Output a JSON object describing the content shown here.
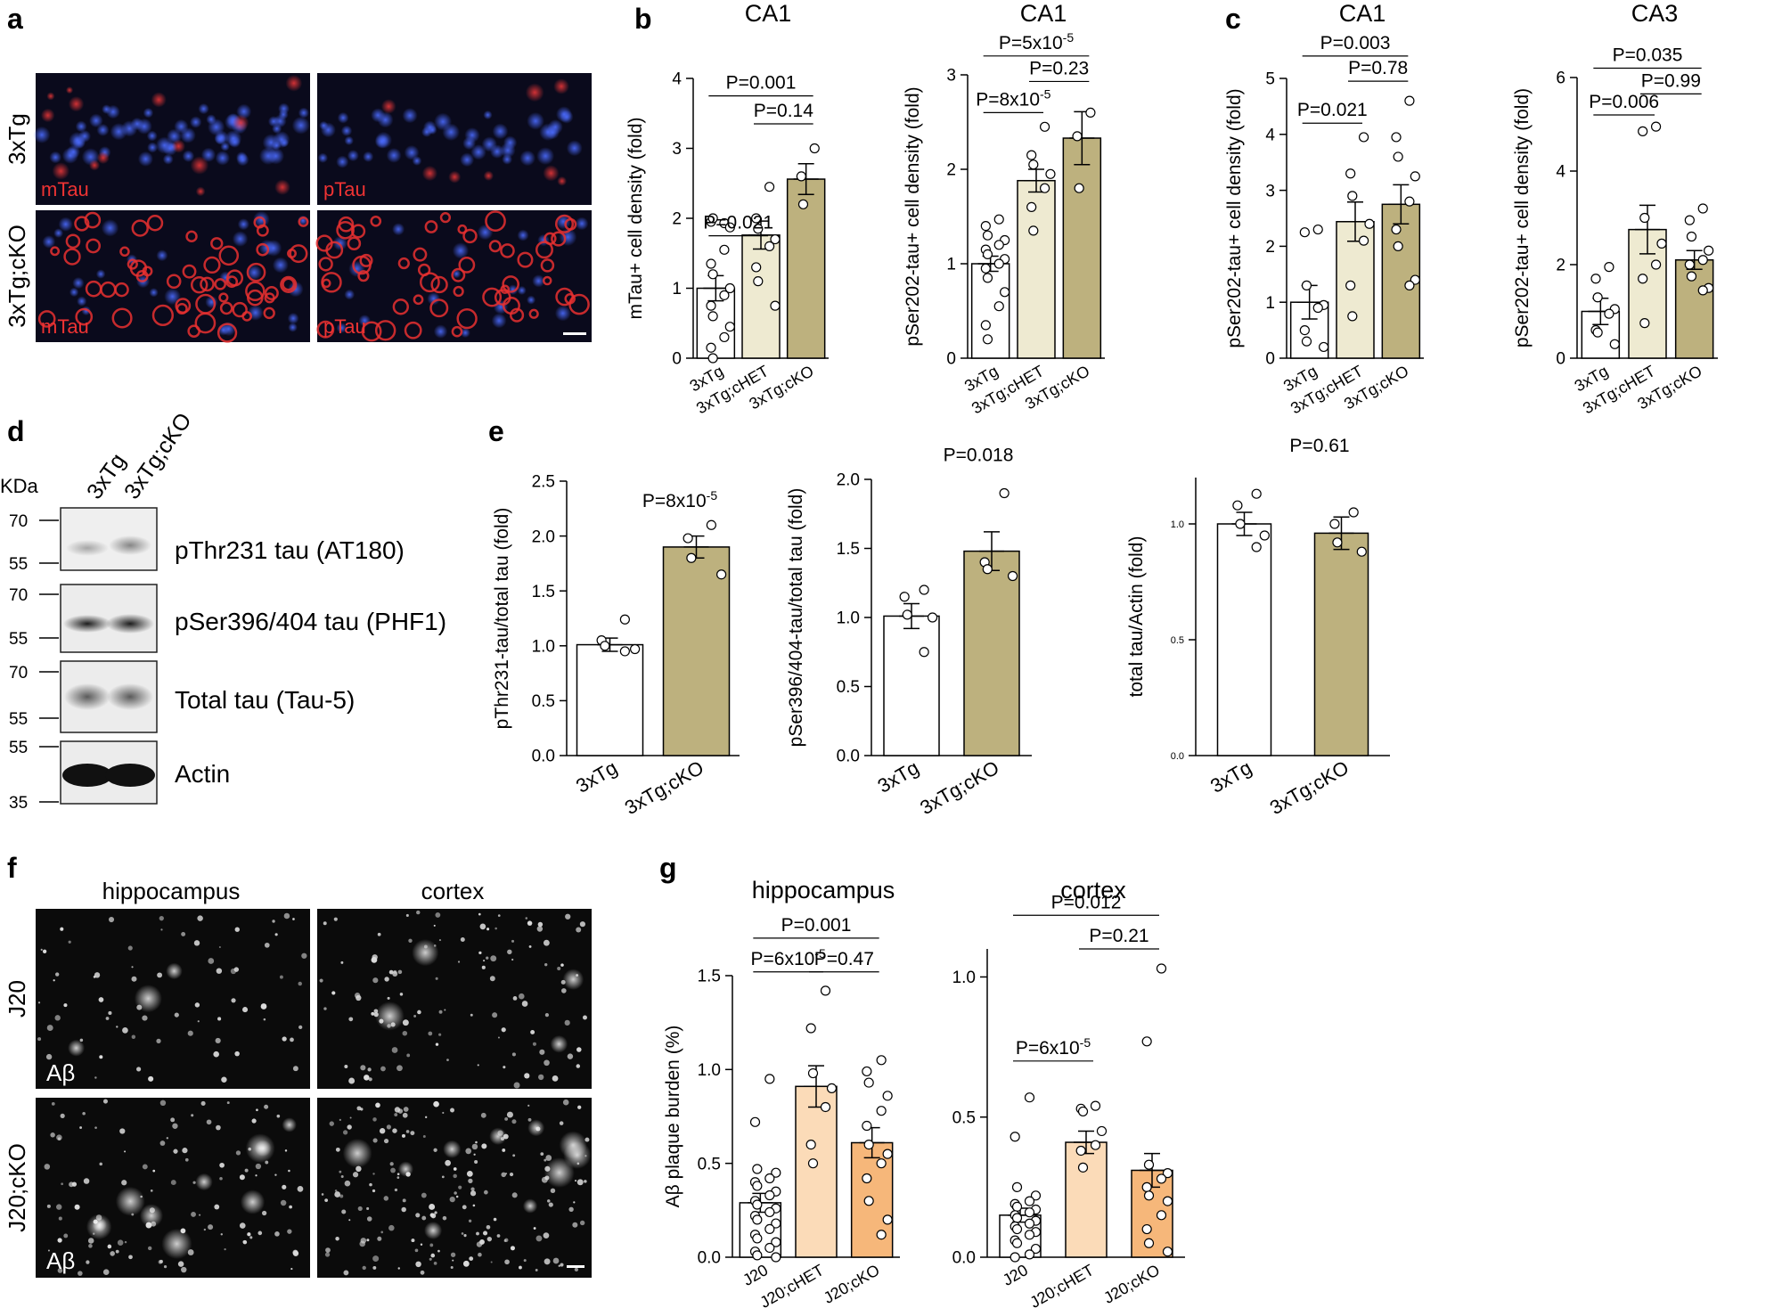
{
  "panel_letters": [
    "a",
    "b",
    "c",
    "d",
    "e",
    "f",
    "g"
  ],
  "panel_a": {
    "rows": [
      "3xTg",
      "3xTg;cKO"
    ],
    "overlays": [
      "mTau",
      "pTau",
      "mTau",
      "pTau"
    ]
  },
  "panel_d": {
    "kda_label": "KDa",
    "lanes": [
      "3xTg",
      "3xTg;cKO"
    ],
    "markers": [
      "70",
      "55",
      "70",
      "55",
      "70",
      "55",
      "55",
      "35"
    ],
    "bands": [
      "pThr231 tau (AT180)",
      "pSer396/404 tau (PHF1)",
      "Total tau (Tau-5)",
      "Actin"
    ]
  },
  "panel_f": {
    "cols": [
      "hippocampus",
      "cortex"
    ],
    "rows": [
      "J20",
      "J20;cKO"
    ],
    "overlays": [
      "Aβ",
      "Aβ"
    ]
  },
  "colors": {
    "ctrl": "#ffffff",
    "het_tau": "#eeead1",
    "ko_tau": "#bdb17e",
    "het_ab": "#fbdbb8",
    "ko_ab": "#f6b77a",
    "point": "#ffffff",
    "red_stain": "#ee3333",
    "blue_stain": "#3355ee"
  },
  "chart_data": [
    {
      "id": "b1",
      "type": "bar",
      "title": "CA1",
      "ylabel": "mTau+ cell density (fold)",
      "ylim": [
        0,
        4
      ],
      "ticks": [
        "0",
        "1",
        "2",
        "3",
        "4"
      ],
      "categories": [
        "3xTg",
        "3xTg;cHET",
        "3xTg;cKO"
      ],
      "values": [
        1.0,
        1.76,
        2.56
      ],
      "errors": [
        0.18,
        0.2,
        0.22
      ],
      "points": [
        [
          1.93,
          1.95,
          2.0,
          1.87,
          1.55,
          1.35,
          1.2,
          1.0,
          0.9,
          0.75,
          0.6,
          0.45,
          0.3,
          0.15,
          0.0
        ],
        [
          2.45,
          2.0,
          1.85,
          1.7,
          1.6,
          1.3,
          1.1,
          0.75
        ],
        [
          3.0,
          2.6,
          2.2
        ]
      ],
      "comparisons": [
        {
          "label": "P=0.021",
          "from": 0,
          "to": 1,
          "level": 1.75
        },
        {
          "label": "P=0.14",
          "from": 1,
          "to": 2,
          "level": 3.35
        },
        {
          "label": "P=0.001",
          "from": 0,
          "to": 2,
          "level": 3.75
        }
      ]
    },
    {
      "id": "b2",
      "type": "bar",
      "title": "CA1",
      "ylabel": "pSer202-tau+ cell density (fold)",
      "ylim": [
        0,
        3
      ],
      "ticks": [
        "0",
        "1",
        "2",
        "3"
      ],
      "categories": [
        "3xTg",
        "3xTg;cHET",
        "3xTg;cKO"
      ],
      "values": [
        1.0,
        1.88,
        2.33
      ],
      "errors": [
        0.08,
        0.12,
        0.28
      ],
      "points": [
        [
          1.47,
          1.4,
          1.3,
          1.25,
          1.2,
          1.15,
          1.1,
          1.05,
          1.0,
          0.95,
          0.85,
          0.7,
          0.55,
          0.35,
          0.2
        ],
        [
          2.45,
          2.15,
          2.05,
          1.95,
          1.8,
          1.6,
          1.35
        ],
        [
          2.6,
          2.35,
          1.8
        ]
      ],
      "comparisons": [
        {
          "label": "P=8x10",
          "label_sup": "-5",
          "from": 0,
          "to": 1,
          "level": 2.6
        },
        {
          "label": "P=0.23",
          "from": 1,
          "to": 2,
          "level": 2.93
        },
        {
          "label": "P=5x10",
          "label_sup": "-5",
          "from": 0,
          "to": 2,
          "level": 3.2
        }
      ]
    },
    {
      "id": "c1",
      "type": "bar",
      "title": "CA1",
      "ylabel": "pSer202-tau+ cell density (fold)",
      "ylim": [
        0,
        5
      ],
      "ticks": [
        "0",
        "1",
        "2",
        "3",
        "4",
        "5"
      ],
      "categories": [
        "3xTg",
        "3xTg;cHET",
        "3xTg;cKO"
      ],
      "values": [
        1.0,
        2.44,
        2.75
      ],
      "errors": [
        0.3,
        0.35,
        0.35
      ],
      "points": [
        [
          2.3,
          2.25,
          1.3,
          0.95,
          0.9,
          0.5,
          0.3,
          0.2
        ],
        [
          3.95,
          3.3,
          2.9,
          2.4,
          2.1,
          1.3,
          0.75
        ],
        [
          4.6,
          3.95,
          3.6,
          3.25,
          2.8,
          2.3,
          2.0,
          1.4,
          1.3
        ]
      ],
      "comparisons": [
        {
          "label": "P=0.021",
          "from": 0,
          "to": 1,
          "level": 4.2
        },
        {
          "label": "P=0.78",
          "from": 1,
          "to": 2,
          "level": 4.95
        },
        {
          "label": "P=0.003",
          "from": 0,
          "to": 2,
          "level": 5.4
        }
      ]
    },
    {
      "id": "c2",
      "type": "bar",
      "title": "CA3",
      "ylabel": "pSer202-tau+ cell density (fold)",
      "ylim": [
        0,
        6
      ],
      "ticks": [
        "0",
        "2",
        "4",
        "6"
      ],
      "categories": [
        "3xTg",
        "3xTg;cHET",
        "3xTg;cKO"
      ],
      "values": [
        1.0,
        2.75,
        2.1
      ],
      "errors": [
        0.28,
        0.52,
        0.2
      ],
      "points": [
        [
          1.95,
          1.7,
          1.3,
          1.05,
          0.95,
          0.6,
          0.55,
          0.3
        ],
        [
          4.95,
          4.85,
          3.0,
          2.45,
          2.0,
          1.7,
          0.75
        ],
        [
          3.2,
          2.95,
          2.6,
          2.3,
          2.1,
          2.0,
          1.75,
          1.5,
          1.45
        ]
      ],
      "comparisons": [
        {
          "label": "P=0.006",
          "from": 0,
          "to": 1,
          "level": 5.2
        },
        {
          "label": "P=0.99",
          "from": 1,
          "to": 2,
          "level": 5.65
        },
        {
          "label": "P=0.035",
          "from": 0,
          "to": 2,
          "level": 6.2
        }
      ]
    },
    {
      "id": "e1",
      "type": "bar",
      "title": "",
      "ylabel": "pThr231-tau/total tau (fold)",
      "ylim": [
        0,
        2.5
      ],
      "ticks": [
        "0.0",
        "0.5",
        "1.0",
        "1.5",
        "2.0",
        "2.5"
      ],
      "categories": [
        "3xTg",
        "3xTg;cKO"
      ],
      "values": [
        1.01,
        1.9
      ],
      "errors": [
        0.06,
        0.1
      ],
      "points": [
        [
          1.24,
          1.05,
          1.0,
          0.97,
          0.95
        ],
        [
          2.1,
          1.98,
          1.8,
          1.65
        ]
      ],
      "comparisons": [
        {
          "label": "P=8x10",
          "label_sup": "-5",
          "from": null,
          "to": null,
          "level": 2.2
        }
      ]
    },
    {
      "id": "e2",
      "type": "bar",
      "title": "",
      "ylabel": "pSer396/404-tau/total tau (fold)",
      "ylim": [
        0,
        2.0
      ],
      "ticks": [
        "0.0",
        "0.5",
        "1.0",
        "1.5",
        "2.0"
      ],
      "categories": [
        "3xTg",
        "3xTg;cKO"
      ],
      "values": [
        1.01,
        1.48
      ],
      "errors": [
        0.09,
        0.14
      ],
      "points": [
        [
          1.2,
          1.15,
          1.02,
          1.0,
          0.75
        ],
        [
          1.9,
          1.4,
          1.35,
          1.3
        ]
      ],
      "comparisons": [
        {
          "label": "P=0.018",
          "from": null,
          "to": null,
          "level": 2.08
        }
      ]
    },
    {
      "id": "e3",
      "type": "bar",
      "title": "",
      "ylabel": "total tau/Actin (fold)",
      "ylim": [
        0,
        1.2
      ],
      "ticks": [
        "0.0",
        "0.5",
        "1.0"
      ],
      "categories": [
        "3xTg",
        "3xTg;cKO"
      ],
      "values": [
        1.0,
        0.96
      ],
      "errors": [
        0.05,
        0.07
      ],
      "points": [
        [
          1.13,
          1.08,
          1.0,
          0.95,
          0.9
        ],
        [
          1.05,
          1.0,
          0.92,
          0.88
        ]
      ],
      "comparisons": [
        {
          "label": "P=0.61",
          "from": null,
          "to": null,
          "level": 1.28
        }
      ]
    },
    {
      "id": "g1",
      "type": "bar",
      "title": "hippocampus",
      "ylabel": "Aβ plaque burden (%)",
      "ylim": [
        0,
        1.5
      ],
      "ticks": [
        "0.0",
        "0.5",
        "1.0",
        "1.5"
      ],
      "categories": [
        "J20",
        "J20;cHET",
        "J20;cKO"
      ],
      "values": [
        0.29,
        0.91,
        0.61
      ],
      "errors": [
        0.05,
        0.11,
        0.08
      ],
      "points": [
        [
          0.95,
          0.72,
          0.47,
          0.45,
          0.42,
          0.4,
          0.38,
          0.35,
          0.33,
          0.3,
          0.28,
          0.26,
          0.24,
          0.22,
          0.2,
          0.18,
          0.15,
          0.12,
          0.1,
          0.08,
          0.05,
          0.03,
          0.01,
          0.0
        ],
        [
          1.42,
          1.22,
          0.98,
          0.9,
          0.8,
          0.6,
          0.5
        ],
        [
          1.05,
          0.99,
          0.93,
          0.86,
          0.78,
          0.7,
          0.6,
          0.55,
          0.5,
          0.42,
          0.3,
          0.2,
          0.12
        ]
      ],
      "comparisons": [
        {
          "label": "P=6x10",
          "label_sup": "-5",
          "from": 0,
          "to": 1,
          "level": 1.52
        },
        {
          "label": "P=0.47",
          "from": 1,
          "to": 2,
          "level": 1.52
        },
        {
          "label": "P=0.001",
          "from": 0,
          "to": 2,
          "level": 1.7
        }
      ]
    },
    {
      "id": "g2",
      "type": "bar",
      "title": "cortex",
      "ylabel": "",
      "ylim": [
        0,
        1.1
      ],
      "ticks": [
        "0.0",
        "0.5",
        "1.0"
      ],
      "categories": [
        "J20",
        "J20;cHET",
        "J20;cKO"
      ],
      "values": [
        0.15,
        0.41,
        0.31
      ],
      "errors": [
        0.025,
        0.04,
        0.06
      ],
      "points": [
        [
          0.57,
          0.43,
          0.25,
          0.22,
          0.2,
          0.19,
          0.18,
          0.17,
          0.16,
          0.15,
          0.14,
          0.13,
          0.12,
          0.11,
          0.1,
          0.09,
          0.08,
          0.06,
          0.05,
          0.03,
          0.01,
          0.0
        ],
        [
          0.54,
          0.53,
          0.52,
          0.45,
          0.4,
          0.38,
          0.32
        ],
        [
          1.03,
          0.77,
          0.33,
          0.3,
          0.28,
          0.25,
          0.22,
          0.2,
          0.15,
          0.1,
          0.05,
          0.02
        ]
      ],
      "comparisons": [
        {
          "label": "P=6x10",
          "label_sup": "-5",
          "from": 0,
          "to": 1,
          "level": 0.7
        },
        {
          "label": "P=0.21",
          "from": 1,
          "to": 2,
          "level": 1.1
        },
        {
          "label": "P=0.012",
          "from": 0,
          "to": 2,
          "level": 1.22
        }
      ]
    }
  ]
}
